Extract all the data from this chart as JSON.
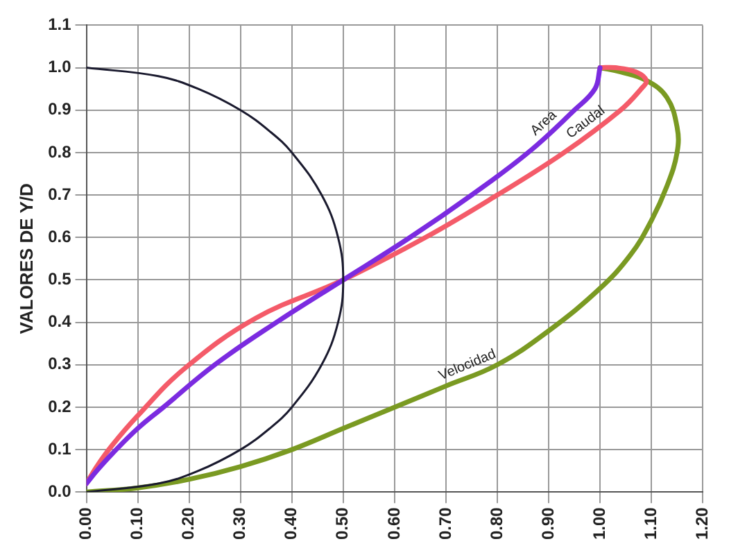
{
  "chart_data": {
    "type": "line",
    "ylabel": "VALORES DE Y/D",
    "xlim": [
      0,
      1.2
    ],
    "ylim": [
      0,
      1.1
    ],
    "xticks": [
      {
        "value": 0,
        "label": "0.00"
      },
      {
        "value": 0.1,
        "label": "0.10"
      },
      {
        "value": 0.2,
        "label": "0.20"
      },
      {
        "value": 0.3,
        "label": "0.30"
      },
      {
        "value": 0.4,
        "label": "0.40"
      },
      {
        "value": 0.5,
        "label": "0.50"
      },
      {
        "value": 0.6,
        "label": "0.60"
      },
      {
        "value": 0.7,
        "label": "0.70"
      },
      {
        "value": 0.8,
        "label": "0.80"
      },
      {
        "value": 0.9,
        "label": "0.90"
      },
      {
        "value": 1,
        "label": "1.00"
      },
      {
        "value": 1.1,
        "label": "1.10"
      },
      {
        "value": 1.2,
        "label": "1.20"
      }
    ],
    "yticks": [
      {
        "value": 0,
        "label": "0.0"
      },
      0.1,
      0.2,
      0.3,
      0.4,
      0.5,
      0.6,
      0.7,
      0.8,
      0.9,
      {
        "value": 1,
        "label": "1.0"
      },
      1.1
    ],
    "grid": true,
    "legend": false,
    "marker": "none",
    "line_style": "solid",
    "series": [
      {
        "color": "#1a1a2e",
        "x": [
          0,
          0.14,
          0.218,
          0.3,
          0.357,
          0.4,
          0.458,
          0.49,
          0.5,
          0.49,
          0.458,
          0.4,
          0.357,
          0.3,
          0.218,
          0.14,
          0
        ],
        "values": [
          1,
          0.98,
          0.95,
          0.9,
          0.85,
          0.8,
          0.7,
          0.6,
          0.5,
          0.4,
          0.3,
          0.2,
          0.15,
          0.1,
          0.05,
          0.02,
          0
        ]
      },
      {
        "name": "Area",
        "color": "#7b2be0",
        "x": [
          0,
          0.02,
          0.05,
          0.1,
          0.15,
          0.25,
          0.37,
          0.5,
          0.63,
          0.75,
          0.86,
          0.95,
          0.99,
          1
        ],
        "values": [
          0.02,
          0.05,
          0.09,
          0.15,
          0.2,
          0.3,
          0.4,
          0.5,
          0.6,
          0.7,
          0.8,
          0.9,
          0.95,
          1
        ]
      },
      {
        "name": "Caudal",
        "color": "#f45b69",
        "x": [
          0,
          0.02,
          0.05,
          0.1,
          0.19,
          0.33,
          0.5,
          0.66,
          0.8,
          0.93,
          1.04,
          1.08,
          1.09,
          1.07,
          1.03,
          1
        ],
        "values": [
          0.02,
          0.06,
          0.11,
          0.18,
          0.29,
          0.41,
          0.5,
          0.6,
          0.7,
          0.8,
          0.9,
          0.95,
          0.97,
          0.99,
          1,
          1
        ]
      },
      {
        "name": "Velocidad",
        "color": "#7a9a22",
        "x": [
          0,
          0.1,
          0.2,
          0.3,
          0.4,
          0.5,
          0.6,
          0.7,
          0.8,
          0.9,
          1,
          1.06,
          1.1,
          1.13,
          1.15,
          1.15,
          1.13,
          1.09,
          1.04,
          1
        ],
        "values": [
          0,
          0.01,
          0.03,
          0.06,
          0.1,
          0.15,
          0.2,
          0.25,
          0.3,
          0.38,
          0.48,
          0.56,
          0.64,
          0.72,
          0.8,
          0.86,
          0.93,
          0.97,
          0.99,
          1
        ]
      }
    ]
  }
}
